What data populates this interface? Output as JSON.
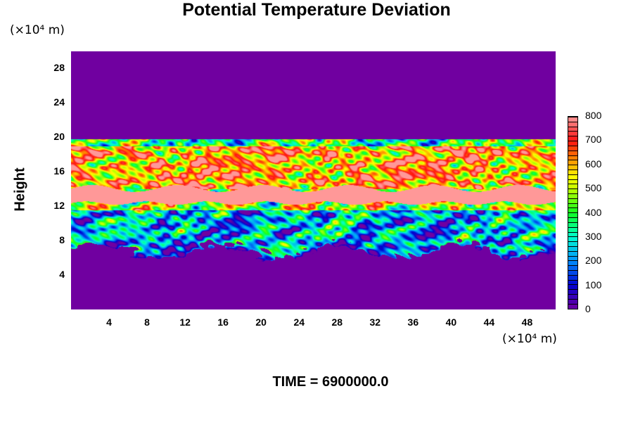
{
  "chart_data": {
    "type": "heatmap",
    "title": "Potential Temperature Deviation",
    "ylabel": "Height",
    "y_unit": "(×10⁴ m)",
    "x_unit": "(×10⁴ m)",
    "xlim": [
      0,
      51
    ],
    "ylim": [
      0,
      30
    ],
    "xticks": [
      "4",
      "8",
      "12",
      "16",
      "20",
      "24",
      "28",
      "32",
      "36",
      "40",
      "44",
      "48"
    ],
    "yticks": [
      "4",
      "8",
      "12",
      "16",
      "20",
      "24",
      "28"
    ],
    "colorbar": {
      "min": 0,
      "max": 800,
      "step": 20,
      "tick_labels": [
        "0",
        "100",
        "200",
        "300",
        "400",
        "500",
        "600",
        "700",
        "800"
      ],
      "color_stops": [
        {
          "v": 0,
          "c": "#7000a0"
        },
        {
          "v": 100,
          "c": "#0000d0"
        },
        {
          "v": 200,
          "c": "#0090ff"
        },
        {
          "v": 300,
          "c": "#00ffd0"
        },
        {
          "v": 400,
          "c": "#10ff20"
        },
        {
          "v": 500,
          "c": "#c0ff00"
        },
        {
          "v": 550,
          "c": "#ffff00"
        },
        {
          "v": 620,
          "c": "#ff9000"
        },
        {
          "v": 700,
          "c": "#ff1010"
        },
        {
          "v": 800,
          "c": "#ff9898"
        }
      ]
    },
    "footer": "TIME = 6900000.0"
  }
}
